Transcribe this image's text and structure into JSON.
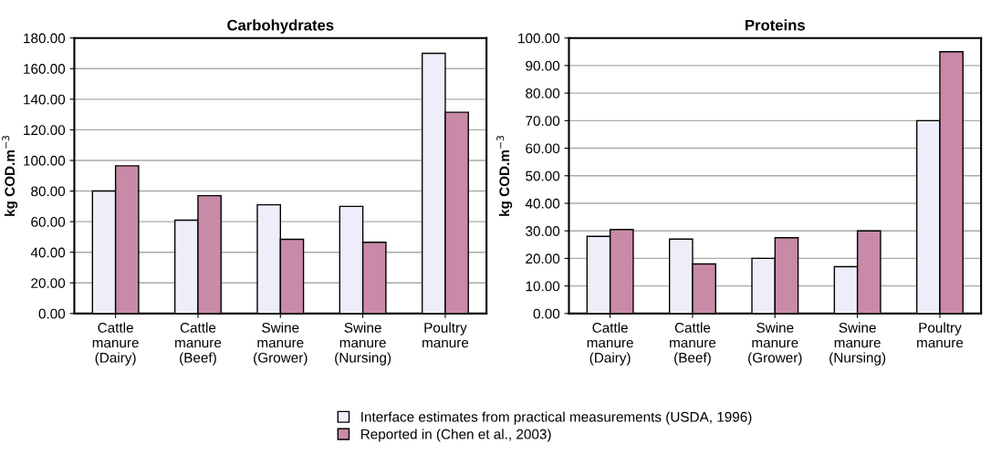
{
  "chart_data": [
    {
      "type": "bar",
      "title": "Carbohydrates",
      "ylabel": "kg COD.m$^{−3}$",
      "categories": [
        "Cattle\nmanure\n(Dairy)",
        "Cattle\nmanure\n(Beef)",
        "Swine\nmanure\n(Grower)",
        "Swine\nmanure\n(Nursing)",
        "Poultry\nmanure"
      ],
      "series": [
        {
          "name": "Interface estimates from practical measurements (USDA, 1996)",
          "color": "#eeeefa",
          "values": [
            80,
            61,
            71,
            70,
            170
          ]
        },
        {
          "name": "Reported in (Chen et al., 2003)",
          "color": "#c98aa8",
          "values": [
            96.5,
            77,
            48.5,
            46.5,
            131.5
          ]
        }
      ],
      "ylim": [
        0,
        180
      ],
      "yticks": [
        {
          "value": 0,
          "label": "0.00"
        },
        {
          "value": 20,
          "label": "20.00"
        },
        {
          "value": 40,
          "label": "40.00"
        },
        {
          "value": 60,
          "label": "60.00"
        },
        {
          "value": 80,
          "label": "80.00"
        },
        {
          "value": 100,
          "label": "100.00"
        },
        {
          "value": 120,
          "label": "120.00"
        },
        {
          "value": 140,
          "label": "140.00"
        },
        {
          "value": 160,
          "label": "160.00"
        },
        {
          "value": 180,
          "label": "180.00"
        }
      ],
      "grid": "y",
      "legend": "bottom"
    },
    {
      "type": "bar",
      "title": "Proteins",
      "ylabel": "kg COD.m$^{−3}$",
      "categories": [
        "Cattle\nmanure\n(Dairy)",
        "Cattle\nmanure\n(Beef)",
        "Swine\nmanure\n(Grower)",
        "Swine\nmanure\n(Nursing)",
        "Poultry\nmanure"
      ],
      "series": [
        {
          "color": "#eeeefa",
          "values": [
            28,
            27,
            20,
            17,
            70
          ]
        },
        {
          "color": "#c98aa8",
          "values": [
            30.5,
            18,
            27.5,
            30,
            95
          ]
        }
      ],
      "ylim": [
        0,
        100
      ],
      "yticks": [
        {
          "value": 0,
          "label": "0.00"
        },
        {
          "value": 10,
          "label": "10.00"
        },
        {
          "value": 20,
          "label": "20.00"
        },
        {
          "value": 30,
          "label": "30.00"
        },
        {
          "value": 40,
          "label": "40.00"
        },
        {
          "value": 50,
          "label": "50.00"
        },
        {
          "value": 60,
          "label": "60.00"
        },
        {
          "value": 70,
          "label": "70.00"
        },
        {
          "value": 80,
          "label": "80.00"
        },
        {
          "value": 90,
          "label": "90.00"
        },
        {
          "value": 100,
          "label": "100.00"
        }
      ],
      "grid": "y"
    }
  ]
}
